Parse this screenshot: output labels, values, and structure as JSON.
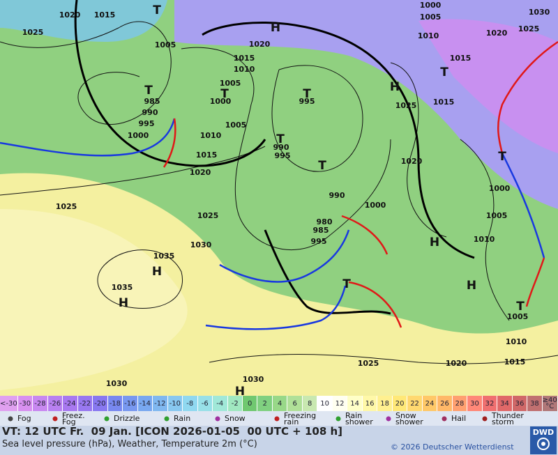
{
  "map": {
    "isobar_labels": [
      1020,
      1015,
      1025,
      1005,
      1020,
      1015,
      1010,
      1005,
      1000,
      995,
      1005,
      985,
      990,
      995,
      1000,
      1010,
      1015,
      1020,
      1025,
      1025,
      1030,
      1035,
      1035,
      990,
      995,
      990,
      980,
      985,
      995,
      1000,
      1025,
      1020,
      1000,
      1005,
      1010,
      1015,
      1015,
      1020,
      1025,
      1030,
      1000,
      1005,
      1010,
      1005,
      1010,
      1015,
      1020,
      1025,
      1030,
      1030
    ],
    "high_labels": [
      "H",
      "H",
      "H",
      "H",
      "H",
      "H",
      "H"
    ],
    "low_labels": [
      "T",
      "T",
      "T",
      "T",
      "T",
      "T",
      "T",
      "T",
      "T",
      "T"
    ]
  },
  "color_scale": {
    "items": [
      {
        "label": "<-30",
        "color": "#e0a0f0"
      },
      {
        "label": "-30",
        "color": "#d890f0"
      },
      {
        "label": "-28",
        "color": "#c888f0"
      },
      {
        "label": "-26",
        "color": "#b880f0"
      },
      {
        "label": "-24",
        "color": "#a878f0"
      },
      {
        "label": "-22",
        "color": "#9878f0"
      },
      {
        "label": "-20",
        "color": "#8878f0"
      },
      {
        "label": "-18",
        "color": "#7888f0"
      },
      {
        "label": "-16",
        "color": "#7898f0"
      },
      {
        "label": "-14",
        "color": "#78a8f0"
      },
      {
        "label": "-12",
        "color": "#80b8f0"
      },
      {
        "label": "-10",
        "color": "#88c8f0"
      },
      {
        "label": "-8",
        "color": "#90d8f0"
      },
      {
        "label": "-6",
        "color": "#98e0e8"
      },
      {
        "label": "-4",
        "color": "#a0e8d8"
      },
      {
        "label": "-2",
        "color": "#a0e8c0"
      },
      {
        "label": "0",
        "color": "#70c870"
      },
      {
        "label": "2",
        "color": "#80d080"
      },
      {
        "label": "4",
        "color": "#98d888"
      },
      {
        "label": "6",
        "color": "#b0e098"
      },
      {
        "label": "8",
        "color": "#c8e8b0"
      },
      {
        "label": "10",
        "color": "#ffffff"
      },
      {
        "label": "12",
        "color": "#fffff0"
      },
      {
        "label": "14",
        "color": "#ffffc8"
      },
      {
        "label": "16",
        "color": "#fff8a8"
      },
      {
        "label": "18",
        "color": "#fff090"
      },
      {
        "label": "20",
        "color": "#ffe878"
      },
      {
        "label": "22",
        "color": "#ffd870"
      },
      {
        "label": "24",
        "color": "#ffc868"
      },
      {
        "label": "26",
        "color": "#ffb868"
      },
      {
        "label": "28",
        "color": "#ffa070"
      },
      {
        "label": "30",
        "color": "#ff8878"
      },
      {
        "label": "32",
        "color": "#f07070"
      },
      {
        "label": "34",
        "color": "#e06868"
      },
      {
        "label": "36",
        "color": "#d06868"
      },
      {
        "label": "38",
        "color": "#c07070"
      },
      {
        "label": "≥40 °C",
        "color": "#b07878"
      }
    ]
  },
  "weather_legend": {
    "items": [
      "Fog",
      "Freez. Fog",
      "Drizzle",
      "Rain",
      "Snow",
      "Freezing rain",
      "Rain shower",
      "Snow shower",
      "Hail",
      "Thunder storm"
    ]
  },
  "footer": {
    "valid_time": "VT: 12 UTC Fr.  09 Jan. [ICON 2026-01-05  00 UTC + 108 h]",
    "description": "Sea level pressure (hPa), Weather, Temperature 2m (°C)",
    "copyright": "© 2026 Deutscher Wetterdienst",
    "logo": "DWD"
  }
}
